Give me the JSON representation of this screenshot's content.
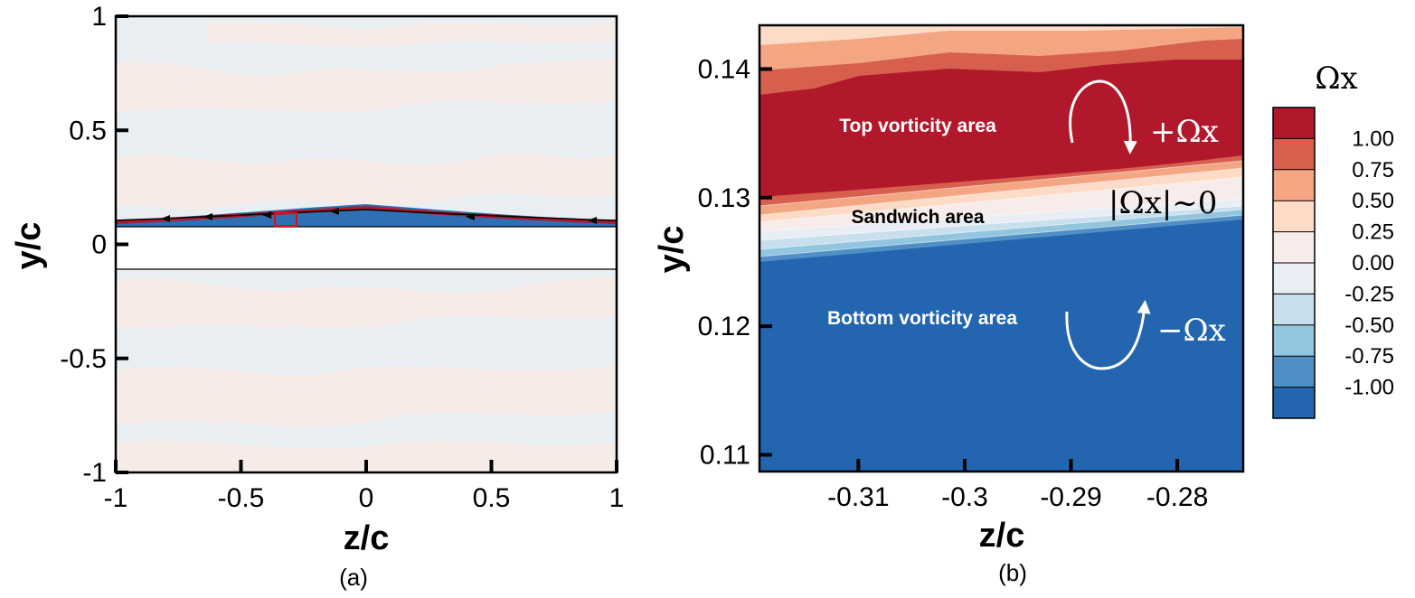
{
  "chart_data": [
    {
      "type": "heatmap",
      "panel": "(a)",
      "xlabel": "z/c",
      "ylabel": "y/c",
      "xlim": [
        -1,
        1
      ],
      "ylim": [
        -1,
        1
      ],
      "xticks": [
        "-1",
        "-0.5",
        "0",
        "0.5",
        "1"
      ],
      "yticks": [
        "-1",
        "-0.5",
        "0",
        "0.5",
        "1"
      ],
      "xtick_values": [
        -1,
        -0.5,
        0,
        0.5,
        1
      ],
      "ytick_values": [
        -1,
        -0.5,
        0,
        0.5,
        1
      ],
      "blank_band_y": [
        -0.11,
        0.09
      ],
      "highlight_box": {
        "z": [
          -0.36,
          -0.27
        ],
        "y": [
          0.095,
          0.135
        ]
      },
      "interface_line": {
        "z": [
          -1,
          -0.5,
          0.07,
          0.5,
          1
        ],
        "y": [
          0.1,
          0.115,
          0.16,
          0.115,
          0.1
        ]
      }
    },
    {
      "type": "heatmap",
      "panel": "(b)",
      "xlabel": "z/c",
      "ylabel": "y/c",
      "xlim": [
        -0.3193,
        -0.2738
      ],
      "ylim": [
        0.1087,
        0.1434
      ],
      "xticks": [
        "-0.31",
        "-0.3",
        "-0.29",
        "-0.28"
      ],
      "yticks": [
        "0.11",
        "0.12",
        "0.13",
        "0.14"
      ],
      "xtick_values": [
        -0.31,
        -0.3,
        -0.29,
        -0.28
      ],
      "ytick_values": [
        0.11,
        0.12,
        0.13,
        0.14
      ],
      "annotations": {
        "top_area": "Top vorticity area",
        "sandwich_area": "Sandwich area",
        "bottom_area": "Bottom vorticity area",
        "plus_omega": "+Ωx",
        "zero_omega": "|Ωx|~0",
        "minus_omega": "−Ωx"
      },
      "bottom_boundary": {
        "z": [
          -0.3193,
          -0.2738
        ],
        "y": [
          0.1251,
          0.1284
        ]
      },
      "top_boundary": {
        "z": [
          -0.3193,
          -0.2738
        ],
        "y": [
          0.1298,
          0.1325
        ]
      }
    }
  ],
  "colorbar": {
    "title": "Ωx",
    "levels": [
      "1.00",
      "0.75",
      "0.50",
      "0.25",
      "0.00",
      "-0.25",
      "-0.50",
      "-0.75",
      "-1.00"
    ],
    "colors": [
      "#b2182b",
      "#d6604d",
      "#f4a582",
      "#fddbc7",
      "#f7ecea",
      "#e8eef4",
      "#c9dfee",
      "#92c5de",
      "#4f8fc5",
      "#2366af"
    ]
  },
  "captions": {
    "a": "(a)",
    "b": "(b)"
  }
}
